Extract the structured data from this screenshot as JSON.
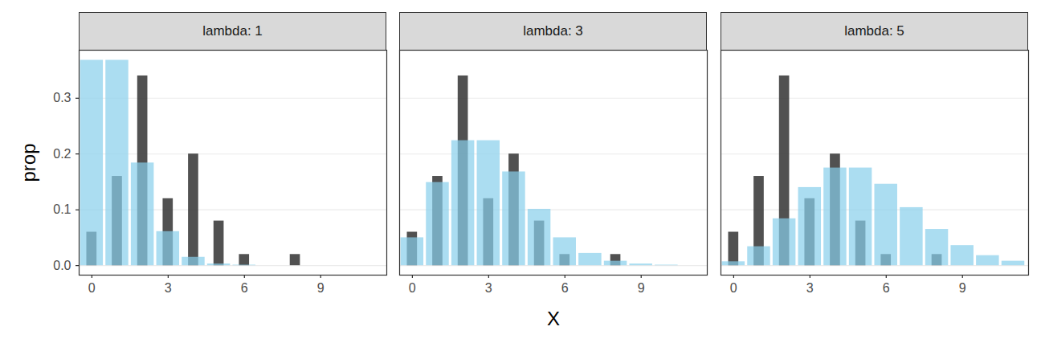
{
  "chart_data": [
    {
      "type": "bar",
      "title": "lambda: 1",
      "x": [
        0,
        1,
        2,
        3,
        4,
        5,
        6,
        7,
        8,
        9,
        10,
        11
      ],
      "series": [
        {
          "color": "#333333",
          "values": [
            0.06,
            0.16,
            0.34,
            0.12,
            0.2,
            0.08,
            0.02,
            0,
            0.02,
            0,
            0,
            0
          ]
        },
        {
          "color": "#87ceeb",
          "values": [
            0.368,
            0.368,
            0.184,
            0.061,
            0.015,
            0.003,
            0.001,
            0,
            0,
            0,
            0,
            0
          ]
        }
      ],
      "xlim": [
        -0.5,
        11.6
      ],
      "ylim": [
        -0.017,
        0.386
      ],
      "xticks": [
        0,
        3,
        6,
        9
      ],
      "yticks": [
        {
          "value": 0,
          "label": "0.0"
        },
        0.1,
        0.2,
        0.3
      ],
      "grid": "y",
      "y_label": "prop"
    },
    {
      "type": "bar",
      "title": "lambda: 3",
      "x": [
        0,
        1,
        2,
        3,
        4,
        5,
        6,
        7,
        8,
        9,
        10,
        11
      ],
      "series": [
        {
          "color": "#333333",
          "values": [
            0.06,
            0.16,
            0.34,
            0.12,
            0.2,
            0.08,
            0.02,
            0,
            0.02,
            0,
            0,
            0
          ]
        },
        {
          "color": "#87ceeb",
          "values": [
            0.05,
            0.149,
            0.224,
            0.224,
            0.168,
            0.101,
            0.05,
            0.022,
            0.008,
            0.003,
            0.001,
            0
          ]
        }
      ],
      "xlim": [
        -0.5,
        11.6
      ],
      "ylim": [
        -0.017,
        0.386
      ],
      "xticks": [
        0,
        3,
        6,
        9
      ],
      "yticks": [
        {
          "value": 0,
          "label": "0.0"
        },
        0.1,
        0.2,
        0.3
      ],
      "grid": "y",
      "x_label": "X",
      "tick_labels": "x"
    },
    {
      "type": "bar",
      "title": "lambda: 5",
      "x": [
        0,
        1,
        2,
        3,
        4,
        5,
        6,
        7,
        8,
        9,
        10,
        11
      ],
      "series": [
        {
          "color": "#333333",
          "values": [
            0.06,
            0.16,
            0.34,
            0.12,
            0.2,
            0.08,
            0.02,
            0,
            0.02,
            0,
            0,
            0
          ]
        },
        {
          "color": "#87ceeb",
          "values": [
            0.007,
            0.034,
            0.084,
            0.14,
            0.175,
            0.175,
            0.146,
            0.104,
            0.065,
            0.036,
            0.018,
            0.008
          ]
        }
      ],
      "xlim": [
        -0.5,
        11.6
      ],
      "ylim": [
        -0.017,
        0.386
      ],
      "xticks": [
        0,
        3,
        6,
        9
      ],
      "yticks": [
        {
          "value": 0,
          "label": "0.0"
        },
        0.1,
        0.2,
        0.3
      ],
      "grid": "y",
      "tick_labels": "x"
    }
  ]
}
